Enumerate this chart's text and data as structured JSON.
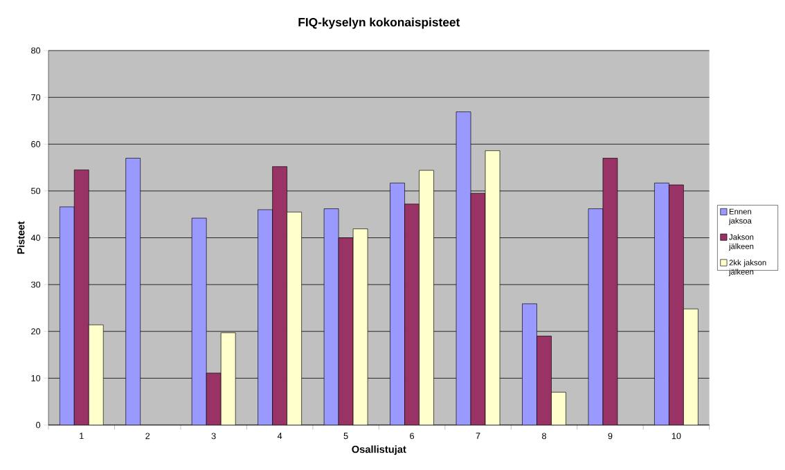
{
  "chart_data": {
    "type": "bar",
    "title": "FIQ-kyselyn kokonaispisteet",
    "xlabel": "Osallistujat",
    "ylabel": "Pisteet",
    "categories": [
      "1",
      "2",
      "3",
      "4",
      "5",
      "6",
      "7",
      "8",
      "9",
      "10"
    ],
    "series": [
      {
        "name": "Ennen jaksoa",
        "color": "#9999ff",
        "values": [
          46.6,
          57.0,
          44.2,
          46.0,
          46.2,
          51.7,
          66.9,
          25.9,
          46.2,
          51.7
        ]
      },
      {
        "name": "Jakson jälkeen",
        "color": "#993366",
        "values": [
          54.5,
          null,
          11.1,
          55.2,
          40.0,
          47.2,
          49.5,
          19.0,
          57.0,
          51.3
        ]
      },
      {
        "name": "2kk jakson jälkeen",
        "color": "#ffffcc",
        "values": [
          21.4,
          null,
          19.7,
          45.5,
          41.9,
          54.4,
          58.6,
          7.0,
          null,
          24.8
        ]
      }
    ],
    "ylim": [
      0,
      80
    ],
    "yticks": [
      0,
      10,
      20,
      30,
      40,
      50,
      60,
      70,
      80
    ],
    "grid": "y",
    "legend": "right"
  }
}
